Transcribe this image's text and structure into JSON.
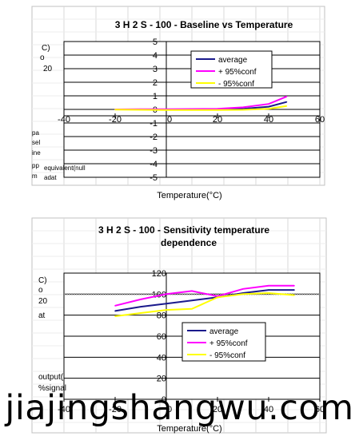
{
  "watermark": "jiajingshangwu.com",
  "chart_data": [
    {
      "type": "line",
      "title": "3 H 2 S - 100 - Baseline  vs  Temperature",
      "xlabel": "Temperature(°C)",
      "ylabel_fragments": [
        "C)",
        "o",
        "20",
        "pa",
        "sel",
        "ine",
        "pp",
        "m",
        "equivalent(null",
        "adat"
      ],
      "x_ticks": [
        "-40",
        "-20",
        "0",
        "20",
        "40",
        "60"
      ],
      "y_ticks": [
        "5",
        "4",
        "3",
        "2",
        "1",
        "0",
        "-1",
        "-2",
        "-3",
        "-4",
        "-5"
      ],
      "xlim": [
        -40,
        60
      ],
      "ylim": [
        -5,
        5
      ],
      "legend_position": "top-right",
      "series": [
        {
          "name": "average",
          "color": "#1a1a8c",
          "x": [
            -20,
            -10,
            0,
            10,
            20,
            30,
            40,
            47
          ],
          "y": [
            0,
            0,
            0,
            0,
            0,
            0.05,
            0.2,
            0.55
          ]
        },
        {
          "name": "+   95%conf",
          "color": "#ff00ff",
          "x": [
            -20,
            -10,
            0,
            10,
            20,
            30,
            40,
            47
          ],
          "y": [
            0,
            0.02,
            0.02,
            0.03,
            0.05,
            0.15,
            0.4,
            0.95
          ]
        },
        {
          "name": "-   95%conf",
          "color": "#ffff00",
          "x": [
            -20,
            -10,
            0,
            10,
            20,
            30,
            40,
            47
          ],
          "y": [
            -0.02,
            -0.03,
            -0.05,
            -0.05,
            -0.05,
            -0.03,
            0.05,
            0.25
          ]
        }
      ]
    },
    {
      "type": "line",
      "title": "3 H 2 S - 100 - Sensitivity  temperature",
      "subtitle": "dependence",
      "xlabel": "Temperature(°C)",
      "ylabel_fragments": [
        "C)",
        "o",
        "20",
        "at",
        "output(",
        "%signal"
      ],
      "x_ticks": [
        "-40",
        "-20",
        "0",
        "20",
        "40",
        "60"
      ],
      "y_ticks": [
        "120",
        "100",
        "80",
        "60",
        "40",
        "20",
        "0"
      ],
      "xlim": [
        -40,
        60
      ],
      "ylim": [
        0,
        120
      ],
      "legend_position": "center",
      "series": [
        {
          "name": "average",
          "color": "#1a1a8c",
          "x": [
            -20,
            -10,
            0,
            10,
            20,
            30,
            40,
            50
          ],
          "y": [
            84,
            88,
            91,
            94,
            97,
            101,
            104,
            104
          ]
        },
        {
          "name": "+   95%conf",
          "color": "#ff00ff",
          "x": [
            -20,
            -10,
            0,
            10,
            20,
            30,
            40,
            50
          ],
          "y": [
            89,
            95,
            100,
            103,
            98,
            105,
            108,
            108
          ]
        },
        {
          "name": "-   95%conf",
          "color": "#ffff00",
          "x": [
            -20,
            -10,
            0,
            10,
            20,
            30,
            40,
            50
          ],
          "y": [
            79,
            82,
            85,
            86,
            97,
            100,
            101,
            99
          ]
        }
      ]
    }
  ]
}
